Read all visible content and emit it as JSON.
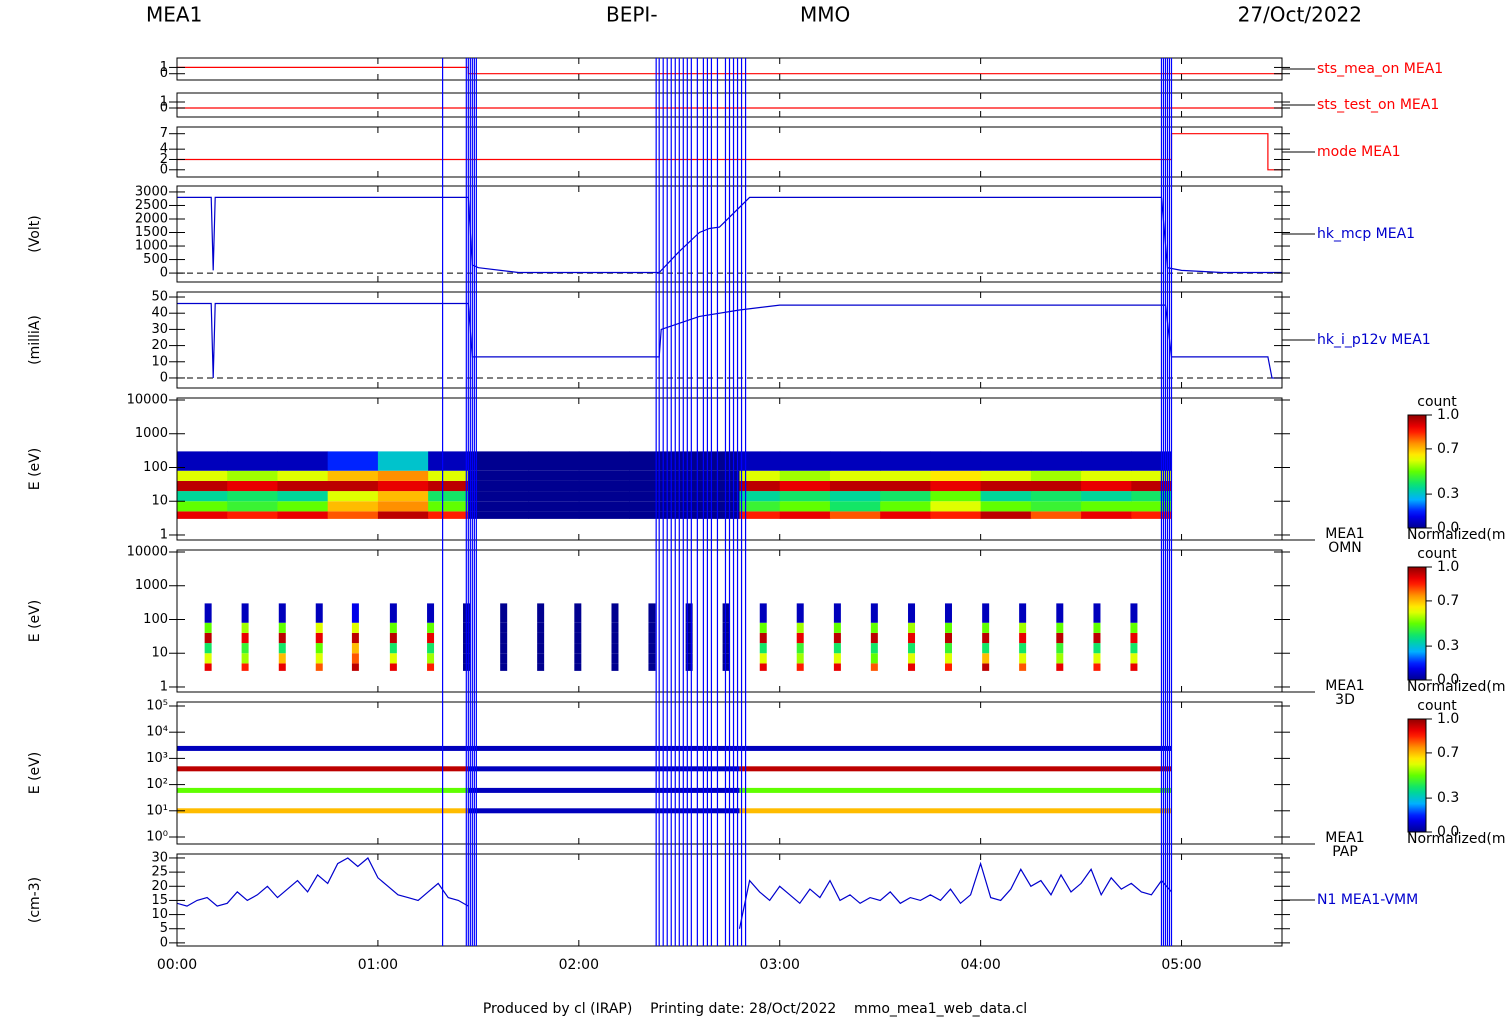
{
  "header": {
    "instrument": "MEA1",
    "mission_left": "BEPI-",
    "mission_right": "MMO",
    "date": "27/Oct/2022"
  },
  "footer": "Produced by cl (IRAP)    Printing date: 28/Oct/2022    mmo_mea1_web_data.cl",
  "time_axis": {
    "xlim": [
      0,
      5.5
    ],
    "xticks": [
      {
        "value": 0,
        "label": "00:00"
      },
      {
        "value": 1,
        "label": "01:00"
      },
      {
        "value": 2,
        "label": "02:00"
      },
      {
        "value": 3,
        "label": "03:00"
      },
      {
        "value": 4,
        "label": "04:00"
      },
      {
        "value": 5,
        "label": "05:00"
      }
    ]
  },
  "events": {
    "color": "#0000ff",
    "x": [
      1.322,
      1.44,
      1.45,
      1.46,
      1.47,
      1.48,
      1.49,
      2.385,
      2.4,
      2.42,
      2.44,
      2.46,
      2.48,
      2.5,
      2.52,
      2.54,
      2.56,
      2.59,
      2.62,
      2.64,
      2.66,
      2.69,
      2.73,
      2.75,
      2.77,
      2.79,
      2.81,
      2.83,
      4.9,
      4.91,
      4.92,
      4.93,
      4.94,
      4.95
    ]
  },
  "colormap": [
    "#000090",
    "#0000ff",
    "#00b0ff",
    "#00e080",
    "#60ff00",
    "#ffff00",
    "#ff9000",
    "#ff0000",
    "#900000"
  ],
  "chart_data": [
    {
      "type": "line",
      "ylim": [
        -1,
        2.5
      ],
      "yticks": [
        0,
        1
      ],
      "series": [
        {
          "name": "sts_mea_on MEA1",
          "color": "#ff0000",
          "x": [
            0,
            1.45,
            1.45,
            5.5
          ],
          "values": [
            1,
            1,
            0,
            0
          ]
        }
      ]
    },
    {
      "type": "line",
      "ylim": [
        -1.5,
        2.5
      ],
      "yticks": [
        0,
        1
      ],
      "series": [
        {
          "name": "sts_test_on MEA1",
          "color": "#ff0000",
          "x": [
            0,
            5.5
          ],
          "values": [
            0,
            0
          ]
        }
      ]
    },
    {
      "type": "line",
      "ylim": [
        -1.4,
        8.3
      ],
      "yticks": [
        0,
        2,
        4,
        7
      ],
      "series": [
        {
          "name": "mode MEA1",
          "color": "#ff0000",
          "x": [
            0,
            4.95,
            4.95,
            5.43,
            5.43,
            5.5
          ],
          "values": [
            2,
            2,
            7,
            7,
            0,
            0
          ]
        }
      ]
    },
    {
      "type": "line",
      "ylabel": "(Volt)",
      "zero_line": true,
      "ylim": [
        -330,
        3220
      ],
      "yticks": [
        0,
        500,
        1000,
        1500,
        2000,
        2500,
        3000
      ],
      "series": [
        {
          "name": "hk_mcp MEA1",
          "color": "#0000cd",
          "x": [
            0,
            0.17,
            0.18,
            0.19,
            0.2,
            1.45,
            1.47,
            1.5,
            1.7,
            2.4,
            2.5,
            2.6,
            2.65,
            2.7,
            2.85,
            4.9,
            4.93,
            5.0,
            5.2,
            5.5
          ],
          "values": [
            2800,
            2800,
            100,
            2800,
            2800,
            2800,
            300,
            200,
            20,
            20,
            800,
            1500,
            1650,
            1700,
            2800,
            2800,
            200,
            100,
            20,
            20
          ]
        }
      ]
    },
    {
      "type": "line",
      "ylabel": "(milliA)",
      "zero_line": true,
      "ylim": [
        -6.2,
        53.1
      ],
      "yticks": [
        0,
        10,
        20,
        30,
        40,
        50
      ],
      "series": [
        {
          "name": "hk_i_p12v MEA1",
          "color": "#0000cd",
          "x": [
            0,
            0.17,
            0.18,
            0.19,
            0.2,
            1.45,
            1.47,
            2.4,
            2.41,
            2.6,
            2.8,
            3.0,
            4.92,
            4.95,
            5.43,
            5.45,
            5.5
          ],
          "values": [
            46,
            46,
            0,
            46,
            46,
            46,
            13,
            13,
            30,
            38,
            42,
            45,
            45,
            13,
            13,
            0,
            0
          ]
        }
      ]
    },
    {
      "type": "heatmap",
      "ylabel": "E (eV)",
      "log": true,
      "label_lines": [
        "MEA1",
        "OMN"
      ],
      "ylim": [
        0.71,
        11460
      ],
      "yticks": [
        1,
        10,
        100,
        1000,
        10000
      ],
      "x_edges": [
        0,
        0.25,
        0.5,
        0.75,
        1.0,
        1.25,
        1.45,
        1.75,
        2.0,
        2.25,
        2.5,
        2.8,
        3.0,
        3.25,
        3.5,
        3.75,
        4.0,
        4.25,
        4.5,
        4.75,
        4.95
      ],
      "y_edges": [
        3,
        5,
        10,
        20,
        40,
        80,
        300
      ],
      "values": [
        [
          0.9,
          0.85,
          0.9,
          0.8,
          0.95,
          0.85,
          0,
          0,
          0,
          0,
          0,
          0.85,
          0.9,
          0.8,
          0.9,
          0.85,
          0.95,
          0.8,
          0.9,
          0.85
        ],
        [
          0.5,
          0.45,
          0.5,
          0.7,
          0.75,
          0.5,
          0,
          0,
          0,
          0,
          0,
          0.45,
          0.5,
          0.4,
          0.5,
          0.6,
          0.5,
          0.45,
          0.5,
          0.5
        ],
        [
          0.35,
          0.4,
          0.35,
          0.6,
          0.7,
          0.4,
          0,
          0,
          0,
          0,
          0,
          0.35,
          0.4,
          0.35,
          0.4,
          0.5,
          0.35,
          0.4,
          0.35,
          0.4
        ],
        [
          0.95,
          0.9,
          0.95,
          0.95,
          0.9,
          0.95,
          0,
          0,
          0,
          0,
          0,
          0.95,
          0.9,
          0.95,
          0.95,
          0.9,
          0.95,
          0.95,
          0.9,
          0.95
        ],
        [
          0.6,
          0.55,
          0.6,
          0.7,
          0.75,
          0.6,
          0,
          0,
          0,
          0,
          0,
          0.6,
          0.55,
          0.6,
          0.6,
          0.65,
          0.6,
          0.55,
          0.6,
          0.6
        ],
        [
          0.05,
          0.05,
          0.05,
          0.15,
          0.3,
          0.05,
          0,
          0,
          0,
          0,
          0,
          0.05,
          0.05,
          0.05,
          0.05,
          0.05,
          0.05,
          0.05,
          0.05,
          0.05
        ]
      ],
      "colorbar": {
        "title": "count",
        "label": "Normalized(m",
        "ticks": [
          {
            "value": 1,
            "label": "1.0"
          },
          {
            "value": 0.7,
            "label": "0.7"
          },
          {
            "value": 0.3,
            "label": "0.3"
          },
          {
            "value": 0,
            "label": "0.0"
          }
        ]
      }
    },
    {
      "type": "columns",
      "ylabel": "E (eV)",
      "log": true,
      "label_lines": [
        "MEA1",
        "3D"
      ],
      "ylim": [
        0.71,
        11460
      ],
      "yticks": [
        1,
        10,
        100,
        1000,
        10000
      ],
      "x": [
        0.155,
        0.339,
        0.524,
        0.708,
        0.888,
        1.077,
        1.262,
        1.441,
        1.626,
        1.81,
        1.995,
        2.18,
        2.364,
        2.549,
        2.733,
        2.918,
        3.102,
        3.287,
        3.471,
        3.656,
        3.84,
        4.025,
        4.209,
        4.394,
        4.579,
        4.763
      ],
      "y_edges": [
        3,
        5,
        10,
        20,
        40,
        80,
        300
      ],
      "values": [
        [
          0.9,
          0.85,
          0.9,
          0.8,
          0.95,
          0.9,
          0.85,
          0,
          0,
          0,
          0,
          0,
          0,
          0,
          0,
          0.9,
          0.85,
          0.9,
          0.8,
          0.9,
          0.85,
          0.95,
          0.8,
          0.9,
          0.85,
          0.9
        ],
        [
          0.6,
          0.55,
          0.7,
          0.6,
          0.8,
          0.6,
          0.55,
          0,
          0,
          0,
          0,
          0,
          0,
          0,
          0,
          0.6,
          0.55,
          0.6,
          0.5,
          0.6,
          0.6,
          0.7,
          0.6,
          0.55,
          0.6,
          0.6
        ],
        [
          0.4,
          0.45,
          0.4,
          0.5,
          0.7,
          0.4,
          0.4,
          0,
          0,
          0,
          0,
          0,
          0,
          0,
          0,
          0.4,
          0.45,
          0.4,
          0.4,
          0.4,
          0.45,
          0.4,
          0.4,
          0.45,
          0.4,
          0.4
        ],
        [
          0.95,
          0.9,
          0.95,
          0.9,
          0.95,
          0.95,
          0.9,
          0,
          0,
          0,
          0,
          0,
          0,
          0,
          0,
          0.95,
          0.9,
          0.95,
          0.95,
          0.9,
          0.95,
          0.95,
          0.9,
          0.95,
          0.95,
          0.9
        ],
        [
          0.5,
          0.55,
          0.5,
          0.6,
          0.6,
          0.5,
          0.5,
          0,
          0,
          0,
          0,
          0,
          0,
          0,
          0,
          0.5,
          0.55,
          0.5,
          0.5,
          0.55,
          0.5,
          0.5,
          0.55,
          0.5,
          0.5,
          0.5
        ],
        [
          0.05,
          0.05,
          0.05,
          0.05,
          0.1,
          0.05,
          0.05,
          0,
          0,
          0,
          0,
          0,
          0,
          0,
          0,
          0.05,
          0.05,
          0.05,
          0.05,
          0.05,
          0.05,
          0.05,
          0.05,
          0.05,
          0.05,
          0.05
        ]
      ],
      "colorbar": {
        "title": "count",
        "label": "Normalized(m",
        "ticks": [
          {
            "value": 1,
            "label": "1.0"
          },
          {
            "value": 0.7,
            "label": "0.7"
          },
          {
            "value": 0.3,
            "label": "0.3"
          },
          {
            "value": 0,
            "label": "0.0"
          }
        ]
      }
    },
    {
      "type": "bands",
      "ylabel": "E (eV)",
      "log": true,
      "label_lines": [
        "MEA1",
        "PAP"
      ],
      "ylim": [
        0.54,
        142000
      ],
      "yticks": [
        {
          "value": 1,
          "label": "10⁰"
        },
        {
          "value": 10,
          "label": "10¹"
        },
        {
          "value": 100,
          "label": "10²"
        },
        {
          "value": 1000,
          "label": "10³"
        },
        {
          "value": 10000,
          "label": "10⁴"
        },
        {
          "value": 100000,
          "label": "10⁵"
        }
      ],
      "x_edges": [
        0,
        1.45,
        2.8,
        4.95
      ],
      "energies": [
        2400,
        400,
        60,
        10
      ],
      "values": [
        [
          0.05,
          0.05,
          0.05
        ],
        [
          0.95,
          0.05,
          0.95
        ],
        [
          0.5,
          0.05,
          0.5
        ],
        [
          0.7,
          0.05,
          0.7
        ]
      ],
      "colorbar": {
        "title": "count",
        "label": "Normalized(m",
        "ticks": [
          {
            "value": 1,
            "label": "1.0"
          },
          {
            "value": 0.7,
            "label": "0.7"
          },
          {
            "value": 0.3,
            "label": "0.3"
          },
          {
            "value": 0,
            "label": "0.0"
          }
        ]
      }
    },
    {
      "type": "line",
      "ylabel": "(cm-3)",
      "ylim": [
        -1.1,
        31.4
      ],
      "yticks": [
        0,
        5,
        10,
        15,
        20,
        25,
        30
      ],
      "series": [
        {
          "name": "N1 MEA1-VMM",
          "color": "#0000cd",
          "x": [
            0,
            0.05,
            0.1,
            0.15,
            0.2,
            0.25,
            0.3,
            0.35,
            0.4,
            0.45,
            0.5,
            0.55,
            0.6,
            0.65,
            0.7,
            0.75,
            0.8,
            0.85,
            0.9,
            0.95,
            1.0,
            1.05,
            1.1,
            1.15,
            1.2,
            1.25,
            1.3,
            1.35,
            1.4,
            1.45,
            1.5,
            1.55,
            1.6,
            1.65,
            1.7,
            1.75,
            1.8,
            1.85,
            1.9,
            1.95,
            2.0,
            2.05,
            2.1,
            2.15,
            2.2,
            2.25,
            2.3,
            2.35,
            2.4,
            2.45,
            2.5,
            2.55,
            2.6,
            2.65,
            2.7,
            2.75,
            2.8,
            2.85,
            2.9,
            2.95,
            3.0,
            3.05,
            3.1,
            3.15,
            3.2,
            3.25,
            3.3,
            3.35,
            3.4,
            3.45,
            3.5,
            3.55,
            3.6,
            3.65,
            3.7,
            3.75,
            3.8,
            3.85,
            3.9,
            3.95,
            4.0,
            4.05,
            4.1,
            4.15,
            4.2,
            4.25,
            4.3,
            4.35,
            4.4,
            4.45,
            4.5,
            4.55,
            4.6,
            4.65,
            4.7,
            4.75,
            4.8,
            4.85,
            4.9,
            4.95
          ],
          "values": [
            14,
            13,
            15,
            16,
            13,
            14,
            18,
            15,
            17,
            20,
            16,
            19,
            22,
            18,
            24,
            21,
            28,
            30,
            27,
            30,
            23,
            20,
            17,
            16,
            15,
            18,
            21,
            16,
            15,
            13,
            null,
            null,
            null,
            null,
            null,
            null,
            null,
            null,
            null,
            null,
            null,
            null,
            null,
            null,
            null,
            null,
            null,
            null,
            null,
            null,
            null,
            null,
            null,
            null,
            null,
            null,
            5,
            22,
            18,
            15,
            20,
            17,
            14,
            19,
            16,
            22,
            15,
            17,
            14,
            16,
            15,
            18,
            14,
            16,
            15,
            17,
            15,
            19,
            14,
            17,
            28,
            16,
            15,
            19,
            26,
            20,
            22,
            17,
            24,
            18,
            21,
            26,
            17,
            23,
            19,
            21,
            18,
            17,
            22,
            18
          ]
        }
      ]
    }
  ]
}
